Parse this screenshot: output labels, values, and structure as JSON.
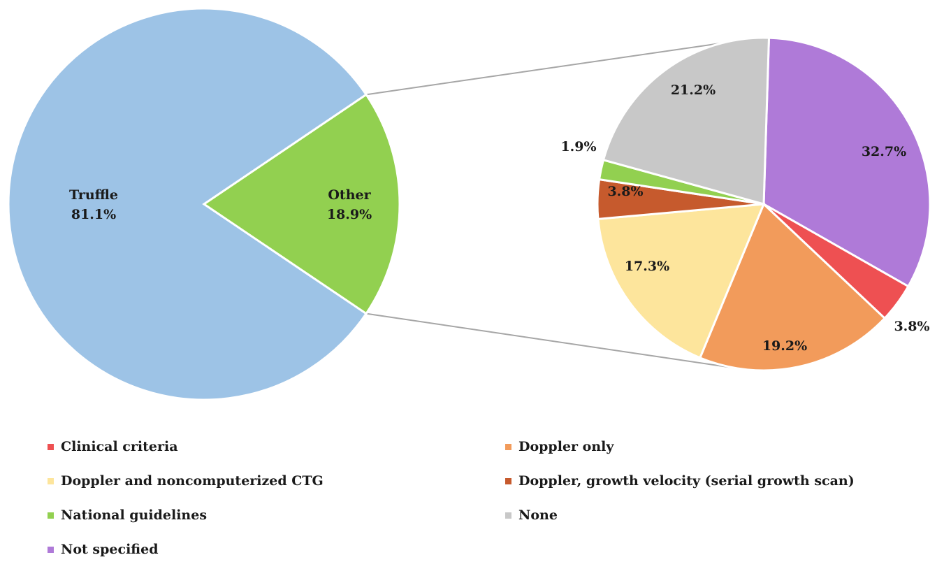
{
  "chart_data": [
    {
      "type": "pie",
      "slices": [
        {
          "label": "Truffle",
          "value": 81.1,
          "value_label": "81.1%",
          "color": "#9dc3e6"
        },
        {
          "label": "Other",
          "value": 18.9,
          "value_label": "18.9%",
          "color": "#92d050"
        }
      ]
    },
    {
      "type": "pie",
      "slices": [
        {
          "label": "Not specified",
          "value": 32.7,
          "value_label": "32.7%",
          "color": "#af7ad8"
        },
        {
          "label": "Clinical criteria",
          "value": 3.8,
          "value_label": "3.8%",
          "color": "#ee5052"
        },
        {
          "label": "Doppler only",
          "value": 19.2,
          "value_label": "19.2%",
          "color": "#f29b5b"
        },
        {
          "label": "Doppler and noncomputerized CTG",
          "value": 17.3,
          "value_label": "17.3%",
          "color": "#fde59c"
        },
        {
          "label": "Doppler, growth velocity (serial growth scan)",
          "value": 3.8,
          "value_label": "3.8%",
          "color": "#c65a2d"
        },
        {
          "label": "National guidelines",
          "value": 1.9,
          "value_label": "1.9%",
          "color": "#92d050"
        },
        {
          "label": "None",
          "value": 21.2,
          "value_label": "21.2%",
          "color": "#c8c8c8"
        }
      ]
    }
  ],
  "legend": [
    {
      "label": "Clinical criteria",
      "color": "#ee5052"
    },
    {
      "label": "Doppler only",
      "color": "#f29b5b"
    },
    {
      "label": "Doppler and noncomputerized CTG",
      "color": "#fde59c"
    },
    {
      "label": "Doppler, growth velocity (serial growth scan)",
      "color": "#c65a2d"
    },
    {
      "label": "National guidelines",
      "color": "#92d050"
    },
    {
      "label": "None",
      "color": "#c8c8c8"
    },
    {
      "label": "Not specified",
      "color": "#af7ad8"
    }
  ]
}
